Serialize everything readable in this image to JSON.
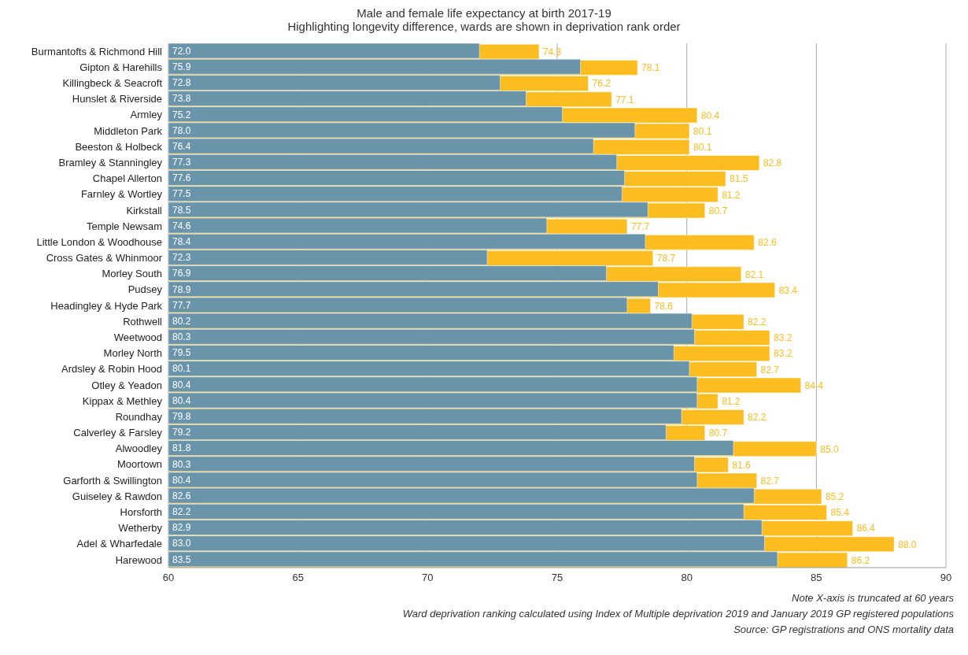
{
  "chart_data": {
    "type": "bar",
    "orientation": "horizontal",
    "title": "Male and female life expectancy at birth 2017-19",
    "subtitle": "Highlighting longevity difference, wards are shown in deprivation rank order",
    "categories": [
      "Burmantofts & Richmond Hill",
      "Gipton & Harehills",
      "Killingbeck & Seacroft",
      "Hunslet & Riverside",
      "Armley",
      "Middleton Park",
      "Beeston & Holbeck",
      "Bramley & Stanningley",
      "Chapel Allerton",
      "Farnley & Wortley",
      "Kirkstall",
      "Temple Newsam",
      "Little London & Woodhouse",
      "Cross Gates & Whinmoor",
      "Morley South",
      "Pudsey",
      "Headingley & Hyde Park",
      "Rothwell",
      "Weetwood",
      "Morley North",
      "Ardsley & Robin Hood",
      "Otley & Yeadon",
      "Kippax & Methley",
      "Roundhay",
      "Calverley & Farsley",
      "Alwoodley",
      "Moortown",
      "Garforth & Swillington",
      "Guiseley & Rawdon",
      "Horsforth",
      "Wetherby",
      "Adel & Wharfedale",
      "Harewood"
    ],
    "series": [
      {
        "color": "#6994aa",
        "values": [
          72.0,
          75.9,
          72.8,
          73.8,
          75.2,
          78.0,
          76.4,
          77.3,
          77.6,
          77.5,
          78.5,
          74.6,
          78.4,
          72.3,
          76.9,
          78.9,
          77.7,
          80.2,
          80.3,
          79.5,
          80.1,
          80.4,
          80.4,
          79.8,
          79.2,
          81.8,
          80.3,
          80.4,
          82.6,
          82.2,
          82.9,
          83.0,
          83.5
        ],
        "value_labels": [
          "72.0",
          "75.9",
          "72.8",
          "73.8",
          "75.2",
          "78.0",
          "76.4",
          "77.3",
          "77.6",
          "77.5",
          "78.5",
          "74.6",
          "78.4",
          "72.3",
          "76.9",
          "78.9",
          "77.7",
          "80.2",
          "80.3",
          "79.5",
          "80.1",
          "80.4",
          "80.4",
          "79.8",
          "79.2",
          "81.8",
          "80.3",
          "80.4",
          "82.6",
          "82.2",
          "82.9",
          "83.0",
          "83.5"
        ]
      },
      {
        "color": "#fbbd1f",
        "values": [
          74.3,
          78.1,
          76.2,
          77.1,
          80.4,
          80.1,
          80.1,
          82.8,
          81.5,
          81.2,
          80.7,
          77.7,
          82.6,
          78.7,
          82.1,
          83.4,
          78.6,
          82.2,
          83.2,
          83.2,
          82.7,
          84.4,
          81.2,
          82.2,
          80.7,
          85.0,
          81.6,
          82.7,
          85.2,
          85.4,
          86.4,
          88.0,
          86.2
        ],
        "value_labels": [
          "74.3",
          "78.1",
          "76.2",
          "77.1",
          "80.4",
          "80.1",
          "80.1",
          "82.8",
          "81.5",
          "81.2",
          "80.7",
          "77.7",
          "82.6",
          "78.7",
          "82.1",
          "83.4",
          "78.6",
          "82.2",
          "83.2",
          "83.2",
          "82.7",
          "84.4",
          "81.2",
          "82.2",
          "80.7",
          "85.0",
          "81.6",
          "82.7",
          "85.2",
          "85.4",
          "86.4",
          "88.0",
          "86.2"
        ]
      }
    ],
    "xlim": [
      60,
      90
    ],
    "xticks": [
      60,
      65,
      70,
      75,
      80,
      85,
      90
    ],
    "grid": "x",
    "annotations": [
      "Note X-axis is truncated at 60 years",
      "Ward deprivation ranking calculated using Index of Multiple deprivation 2019 and January 2019 GP registered populations",
      "Source: GP registrations and ONS mortality data"
    ]
  }
}
